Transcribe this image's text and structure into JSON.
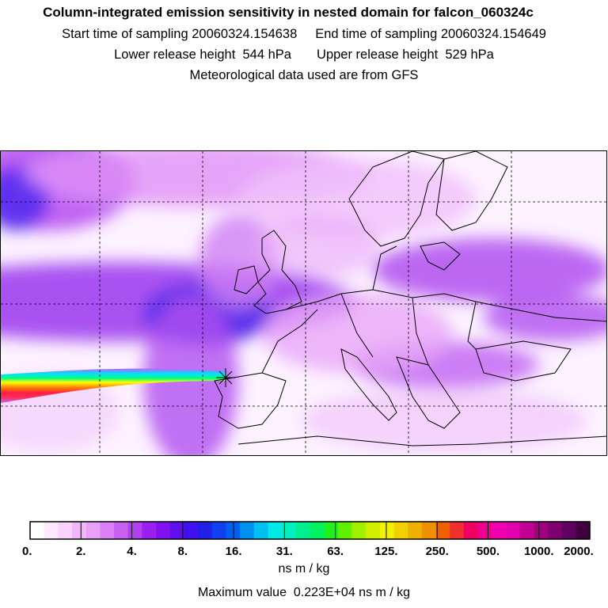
{
  "header": {
    "title": "Column-integrated emission sensitivity in nested domain for falcon_060324c",
    "sampling_line": "Start time of sampling 20060324.154638     End time of sampling 20060324.154649",
    "height_line": "Lower release height  544 hPa       Upper release height  529 hPa",
    "met_line": "Meteorological data used are from GFS"
  },
  "legend": {
    "tick_labels": [
      "0.",
      "2.",
      "4.",
      "8.",
      "16.",
      "31.",
      "63.",
      "125.",
      "250.",
      "500.",
      "1000.",
      "2000."
    ],
    "colors": [
      "#ffffff",
      "#fde8ff",
      "#f9d2ff",
      "#f3b8fb",
      "#e9a0f8",
      "#dd80f5",
      "#c860f2",
      "#b040f0",
      "#9a20f0",
      "#8010f0",
      "#6010f0",
      "#4010f0",
      "#2020e8",
      "#1040f0",
      "#0060f0",
      "#0090f0",
      "#00c0f0",
      "#00e8e8",
      "#00f0c0",
      "#00f090",
      "#00f060",
      "#20f020",
      "#60f000",
      "#a0f000",
      "#d0f000",
      "#f0f000",
      "#f0d000",
      "#f0b000",
      "#f09000",
      "#f06000",
      "#f03030",
      "#f00060",
      "#f00090",
      "#f000b0",
      "#e000b0",
      "#c00090",
      "#a00080",
      "#800070",
      "#600060",
      "#400040"
    ],
    "unit": "ns m / kg",
    "max_value_text": "Maximum value  0.223E+04 ns m / kg"
  },
  "map": {
    "release_site_icon": "star-marker-icon",
    "plume_colors": [
      "#ff2040",
      "#ff3030",
      "#ff8000",
      "#ffff00",
      "#00ff80",
      "#00e0ff",
      "#8040ff",
      "#c060ff"
    ],
    "field_colors": {
      "light": "#f4c8fb",
      "medium": "#d88af4",
      "strong": "#b040f0",
      "intense": "#7a2ef0",
      "deep_blue": "#3a30e8"
    }
  }
}
